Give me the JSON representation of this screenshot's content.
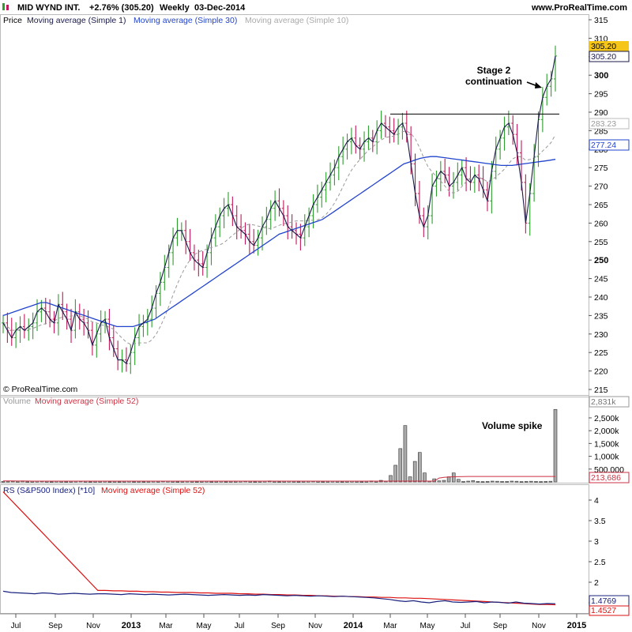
{
  "header": {
    "symbol": "MID WYND INT.",
    "change": "+2.76% (305.20)",
    "period": "Weekly",
    "date": "03-Dec-2014",
    "site": "www.ProRealTime.com"
  },
  "copyright": "© ProRealTime.com",
  "colors": {
    "bull": "#2e9e2e",
    "bear": "#c0185a",
    "ma1": "#1a1a4a",
    "ma30": "#2244cc",
    "ma10": "#999999",
    "volume_ma": "#cc3344",
    "rs": "#1a237e",
    "rs_ma": "#dd1111",
    "last_price_bg": "#f5c518"
  },
  "price_panel": {
    "legend": [
      "Price",
      "Moving average (Simple 1)",
      "Moving average (Simple 30)",
      "Moving average (Simple 10)"
    ],
    "axis_ticks": [
      "315",
      "310",
      "305",
      "300",
      "295",
      "290",
      "285",
      "280",
      "275",
      "270",
      "265",
      "260",
      "255",
      "250",
      "245",
      "240",
      "235",
      "230",
      "225",
      "220",
      "215"
    ],
    "badges": {
      "last": "305.20",
      "ma1": "305.20",
      "ma10": "283.23",
      "ma30": "277.24"
    },
    "annotation_line1": "Stage 2",
    "annotation_line2": "continuation",
    "resistance_level": 289.5
  },
  "volume_panel": {
    "legend": [
      "Volume",
      "Moving average (Simple 52)"
    ],
    "axis_ticks": [
      "2,500k",
      "2,000k",
      "1,500k",
      "1,000k",
      "500,000"
    ],
    "badges": {
      "last": "2,831k",
      "ma": "213,686"
    },
    "annotation": "Volume spike"
  },
  "rs_panel": {
    "legend": [
      "RS (S&P500 Index) [*10]",
      "Moving average (Simple 52)"
    ],
    "axis_ticks": [
      "4",
      "3.5",
      "3",
      "2.5",
      "2",
      "1.5"
    ],
    "badges": {
      "rs": "1.4769",
      "ma": "1.4527"
    }
  },
  "x_axis": {
    "labels": [
      "Jul",
      "Sep",
      "Nov",
      "2013",
      "Mar",
      "May",
      "Jul",
      "Sep",
      "Nov",
      "2014",
      "Mar",
      "May",
      "Jul",
      "Sep",
      "Nov",
      "2015"
    ]
  },
  "chart_data": [
    {
      "type": "line",
      "title": "MID WYND INT. Weekly",
      "ylabel": "Price",
      "ylim": [
        215,
        315
      ],
      "series": [
        {
          "name": "Price",
          "values": [
            233,
            231,
            229,
            231,
            232,
            231,
            232,
            233,
            236,
            237,
            236,
            234,
            233,
            238,
            236,
            234,
            231,
            236,
            234,
            233,
            231,
            227,
            230,
            233,
            234,
            229,
            226,
            223,
            223,
            222,
            225,
            229,
            232,
            233,
            234,
            237,
            241,
            244,
            248,
            252,
            256,
            258,
            258,
            255,
            252,
            250,
            249,
            248,
            252,
            256,
            259,
            262,
            264,
            265,
            262,
            259,
            258,
            257,
            255,
            254,
            256,
            259,
            261,
            264,
            266,
            264,
            262,
            259,
            258,
            257,
            256,
            259,
            262,
            265,
            267,
            269,
            271,
            273,
            275,
            278,
            280,
            282,
            283,
            281,
            280,
            282,
            283,
            282,
            285,
            287,
            286,
            285,
            284,
            286,
            287,
            284,
            276,
            268,
            262,
            259,
            262,
            270,
            272,
            274,
            273,
            270,
            271,
            273,
            275,
            272,
            271,
            273,
            272,
            269,
            266,
            274,
            280,
            283,
            286,
            287,
            284,
            279,
            271,
            260,
            268,
            278,
            288,
            294,
            297,
            299,
            305.2
          ]
        },
        {
          "name": "Moving average (Simple 30)",
          "values": [
            235,
            235.5,
            236,
            236.5,
            237,
            237.5,
            238,
            238.5,
            238.5,
            238,
            237.5,
            237,
            236.5,
            236,
            235.5,
            235,
            234.5,
            234,
            233.5,
            233,
            232.5,
            232,
            232,
            232,
            232,
            232.5,
            233,
            233.5,
            234,
            235,
            236,
            237,
            238,
            239,
            240,
            241,
            242,
            243,
            244,
            245,
            246,
            247,
            248,
            249,
            250,
            251,
            252,
            253,
            254,
            255,
            256,
            257,
            257.5,
            258,
            258.5,
            259,
            259.5,
            260,
            260.5,
            261,
            262,
            263,
            264,
            265,
            266,
            267,
            268,
            269,
            270,
            271,
            272,
            273,
            274,
            275,
            276,
            276.5,
            277,
            277.5,
            277.8,
            278,
            278,
            277.8,
            277.6,
            277.4,
            277.2,
            277,
            276.8,
            276.6,
            276.4,
            276.2,
            276,
            275.8,
            275.6,
            275.6,
            275.6,
            275.8,
            276,
            276.2,
            276.4,
            276.6,
            276.8,
            277,
            277.24
          ]
        }
      ]
    },
    {
      "type": "bar",
      "ylabel": "Volume",
      "ylim": [
        0,
        2900
      ],
      "series": [
        {
          "name": "Volume",
          "values": [
            20,
            25,
            30,
            20,
            40,
            15,
            20,
            25,
            30,
            20,
            15,
            25,
            20,
            15,
            20,
            25,
            30,
            20,
            15,
            20,
            20,
            25,
            15,
            20,
            15,
            20,
            25,
            15,
            20,
            15,
            20,
            25,
            20,
            30,
            25,
            20,
            15,
            20,
            25,
            20,
            15,
            20,
            25,
            15,
            20,
            25,
            15,
            20,
            20,
            25,
            30,
            20,
            15,
            20,
            25,
            40,
            20,
            15,
            20,
            25,
            20,
            15,
            20,
            25,
            30,
            20,
            15,
            20,
            25,
            20,
            15,
            20,
            25,
            20,
            15,
            20,
            40,
            20,
            60,
            30,
            250,
            650,
            1300,
            2200,
            200,
            800,
            1150,
            350,
            30,
            120,
            40,
            60,
            200,
            350,
            100,
            20,
            30,
            50,
            20,
            15,
            20,
            30,
            25,
            20,
            20,
            30,
            25,
            15,
            20,
            25,
            20,
            15,
            20,
            25,
            2831
          ]
        },
        {
          "name": "Moving average (Simple 52)",
          "values": [
            40,
            38,
            36,
            35,
            34,
            33,
            32,
            31,
            30,
            30,
            30,
            30,
            30,
            30,
            30,
            30,
            30,
            30,
            30,
            30,
            30,
            30,
            30,
            30,
            30,
            30,
            30,
            30,
            30,
            30,
            30,
            30,
            30,
            30,
            30,
            30,
            30,
            30,
            30,
            30,
            30,
            30,
            30,
            30,
            30,
            30,
            30,
            30,
            30,
            30,
            30,
            30,
            30,
            30,
            30,
            30,
            30,
            30,
            30,
            30,
            30,
            30,
            30,
            30,
            30,
            30,
            30,
            30,
            30,
            30,
            30,
            30,
            30,
            30,
            30,
            30,
            30,
            30,
            30,
            30,
            30,
            30,
            30,
            30,
            30,
            30,
            30,
            30,
            30,
            30,
            150,
            180,
            190,
            200,
            205,
            210,
            212,
            213,
            213,
            213,
            213,
            213,
            213,
            213,
            213,
            213,
            213,
            213,
            213,
            213,
            213,
            213,
            213,
            213,
            213.686
          ]
        }
      ]
    },
    {
      "type": "line",
      "ylabel": "RS (S&P500 Index) [*10]",
      "ylim": [
        1.25,
        4.25
      ],
      "series": [
        {
          "name": "RS (S&P500 Index) [*10]",
          "values": [
            1.78,
            1.75,
            1.74,
            1.73,
            1.72,
            1.74,
            1.73,
            1.71,
            1.72,
            1.73,
            1.72,
            1.71,
            1.72,
            1.72,
            1.71,
            1.7,
            1.72,
            1.71,
            1.7,
            1.71,
            1.7,
            1.69,
            1.7,
            1.71,
            1.7,
            1.69,
            1.68,
            1.69,
            1.7,
            1.69,
            1.68,
            1.69,
            1.68,
            1.7,
            1.69,
            1.68,
            1.67,
            1.68,
            1.67,
            1.66,
            1.67,
            1.66,
            1.65,
            1.66,
            1.65,
            1.64,
            1.63,
            1.62,
            1.6,
            1.58,
            1.55,
            1.53,
            1.55,
            1.52,
            1.5,
            1.53,
            1.55,
            1.52,
            1.51,
            1.52,
            1.53,
            1.5,
            1.52,
            1.51,
            1.49,
            1.52,
            1.49,
            1.48,
            1.47,
            1.48,
            1.4769
          ]
        },
        {
          "name": "Moving average (Simple 52)",
          "values": [
            4.2,
            4.0,
            3.8,
            3.6,
            3.4,
            3.2,
            3.0,
            2.8,
            2.6,
            2.4,
            2.2,
            2.0,
            1.8,
            1.8,
            1.79,
            1.79,
            1.78,
            1.78,
            1.77,
            1.77,
            1.76,
            1.76,
            1.75,
            1.75,
            1.75,
            1.74,
            1.74,
            1.73,
            1.73,
            1.73,
            1.72,
            1.72,
            1.71,
            1.71,
            1.7,
            1.7,
            1.69,
            1.69,
            1.68,
            1.68,
            1.67,
            1.67,
            1.66,
            1.66,
            1.65,
            1.65,
            1.64,
            1.64,
            1.63,
            1.63,
            1.62,
            1.62,
            1.61,
            1.61,
            1.6,
            1.59,
            1.58,
            1.57,
            1.56,
            1.55,
            1.54,
            1.53,
            1.52,
            1.51,
            1.5,
            1.49,
            1.48,
            1.47,
            1.46,
            1.46,
            1.4527
          ]
        }
      ]
    }
  ]
}
